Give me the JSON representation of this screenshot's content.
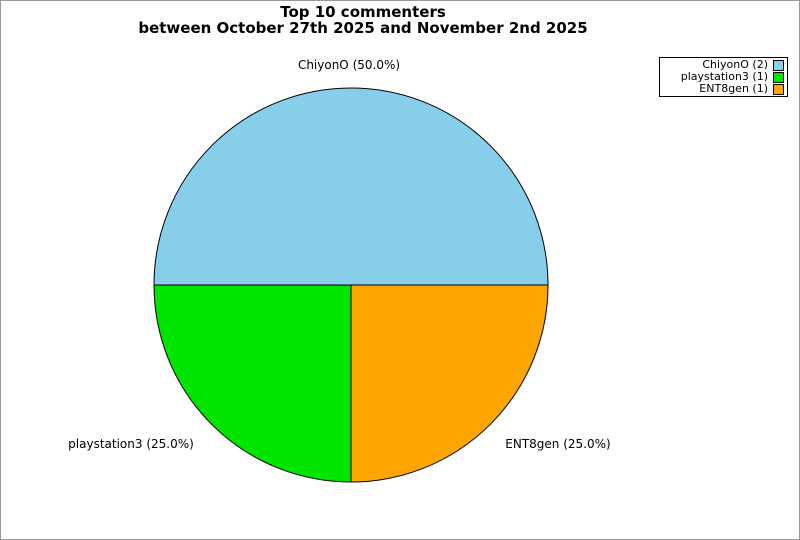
{
  "chart_data": {
    "type": "pie",
    "title": "Top 10 commenters",
    "subtitle": "between October 27th 2025 and November 2nd 2025",
    "slices": [
      {
        "label": "ChiyonO",
        "count": 2,
        "percent": 50.0,
        "color": "#87CEEB",
        "outside_label": "ChiyonO (50.0%)",
        "legend_label": "ChiyonO (2)"
      },
      {
        "label": "playstation3",
        "count": 1,
        "percent": 25.0,
        "color": "#00E400",
        "outside_label": "playstation3 (25.0%)",
        "legend_label": "playstation3 (1)"
      },
      {
        "label": "ENT8gen",
        "count": 1,
        "percent": 25.0,
        "color": "#FFA500",
        "outside_label": "ENT8gen (25.0%)",
        "legend_label": "ENT8gen (1)"
      }
    ],
    "start_angle_deg": 0,
    "direction": "counterclockwise",
    "outline_color": "#000000",
    "legend_position": "top-right",
    "background_color": "#ffffff"
  }
}
